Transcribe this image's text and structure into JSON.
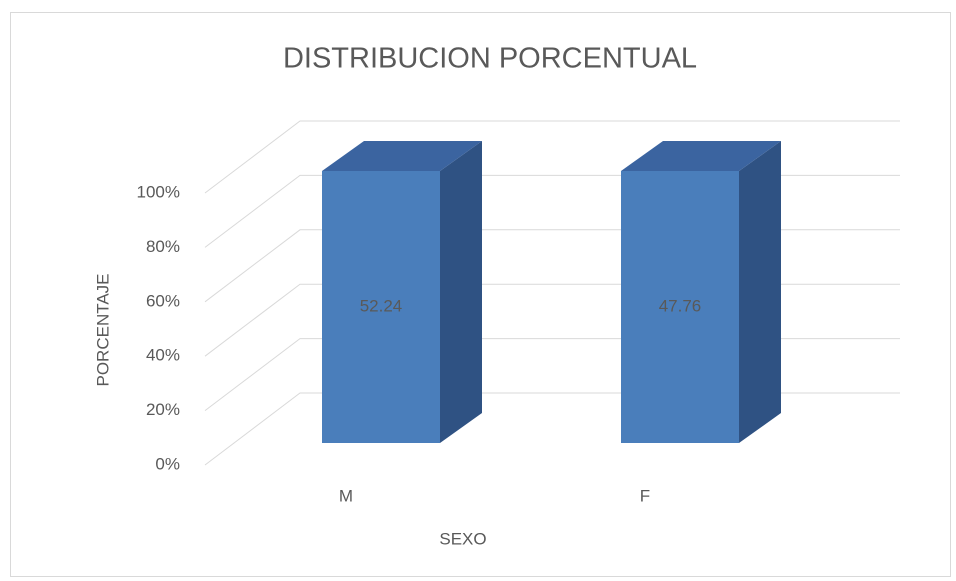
{
  "chart_data": {
    "type": "bar",
    "stacked": "percent",
    "title": "DISTRIBUCION PORCENTUAL",
    "x_label": "SEXO",
    "y_label": "PORCENTAJE",
    "categories": [
      "M",
      "F"
    ],
    "values": [
      52.24,
      47.76
    ],
    "color": "#4a7ebb",
    "ylim": [
      0,
      100
    ],
    "yticks": [
      {
        "value": 0,
        "label": "0%"
      },
      {
        "value": 20,
        "label": "20%"
      },
      {
        "value": 40,
        "label": "40%"
      },
      {
        "value": 60,
        "label": "60%"
      },
      {
        "value": 80,
        "label": "80%"
      },
      {
        "value": 100,
        "label": "100%"
      }
    ],
    "grid": true
  }
}
